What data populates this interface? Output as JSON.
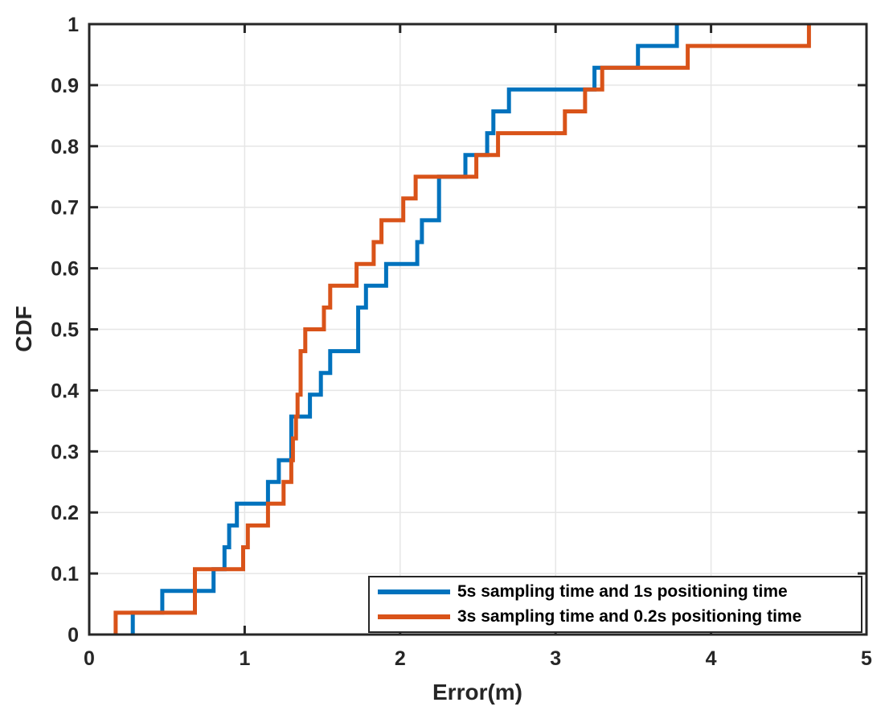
{
  "chart_data": {
    "type": "line",
    "subtype": "step-cdf-stairs",
    "title": "",
    "xlabel": "Error(m)",
    "ylabel": "CDF",
    "xlim": [
      0,
      5
    ],
    "ylim": [
      0,
      1
    ],
    "xticks": [
      0,
      1,
      2,
      3,
      4,
      5
    ],
    "yticks": [
      0,
      0.1,
      0.2,
      0.3,
      0.4,
      0.5,
      0.6,
      0.7,
      0.8,
      0.9,
      1
    ],
    "grid": true,
    "grid_color": "#e6e6e6",
    "axis_color": "#262626",
    "background": "#ffffff",
    "legend_position": "southeast",
    "series": [
      {
        "name": "5s sampling time and 1s positioning time",
        "color": "#0072BD",
        "points": [
          [
            0.28,
            0.0357
          ],
          [
            0.47,
            0.0714
          ],
          [
            0.8,
            0.1071
          ],
          [
            0.87,
            0.1429
          ],
          [
            0.9,
            0.1786
          ],
          [
            0.95,
            0.2143
          ],
          [
            1.15,
            0.25
          ],
          [
            1.22,
            0.2857
          ],
          [
            1.3,
            0.3571
          ],
          [
            1.42,
            0.3929
          ],
          [
            1.49,
            0.4286
          ],
          [
            1.55,
            0.4643
          ],
          [
            1.73,
            0.5357
          ],
          [
            1.78,
            0.5714
          ],
          [
            1.91,
            0.6071
          ],
          [
            2.11,
            0.6429
          ],
          [
            2.14,
            0.6786
          ],
          [
            2.25,
            0.75
          ],
          [
            2.42,
            0.7857
          ],
          [
            2.56,
            0.8214
          ],
          [
            2.6,
            0.8571
          ],
          [
            2.7,
            0.8929
          ],
          [
            3.25,
            0.9286
          ],
          [
            3.53,
            0.9643
          ],
          [
            3.78,
            1.0
          ]
        ]
      },
      {
        "name": "3s sampling time and 0.2s positioning time",
        "color": "#D95319",
        "points": [
          [
            0.17,
            0.0357
          ],
          [
            0.68,
            0.1071
          ],
          [
            0.99,
            0.1429
          ],
          [
            1.02,
            0.1786
          ],
          [
            1.15,
            0.2143
          ],
          [
            1.25,
            0.25
          ],
          [
            1.3,
            0.2857
          ],
          [
            1.31,
            0.3214
          ],
          [
            1.33,
            0.3571
          ],
          [
            1.34,
            0.3929
          ],
          [
            1.36,
            0.4643
          ],
          [
            1.39,
            0.5
          ],
          [
            1.51,
            0.5357
          ],
          [
            1.55,
            0.5714
          ],
          [
            1.72,
            0.6071
          ],
          [
            1.83,
            0.6429
          ],
          [
            1.88,
            0.6786
          ],
          [
            2.02,
            0.7143
          ],
          [
            2.1,
            0.75
          ],
          [
            2.49,
            0.7857
          ],
          [
            2.63,
            0.8214
          ],
          [
            3.06,
            0.8571
          ],
          [
            3.19,
            0.8929
          ],
          [
            3.3,
            0.9286
          ],
          [
            3.85,
            0.9643
          ],
          [
            4.63,
            1.0
          ]
        ]
      }
    ]
  }
}
